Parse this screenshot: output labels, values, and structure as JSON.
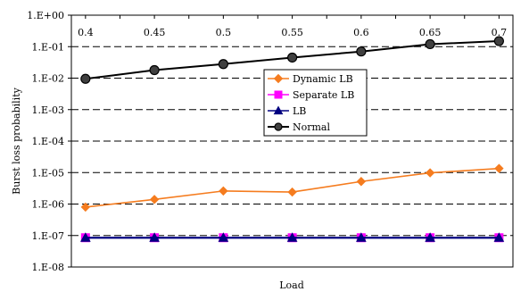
{
  "chart_data": {
    "type": "line",
    "title": "",
    "xlabel": "Load",
    "ylabel": "Burst loss probability",
    "x": [
      0.4,
      0.45,
      0.5,
      0.55,
      0.6,
      0.65,
      0.7
    ],
    "x_tick_labels": [
      "0.4",
      "0.45",
      "0.5",
      "0.55",
      "0.6",
      "0.65",
      "0.7"
    ],
    "y_scale": "log",
    "ylim": [
      1e-08,
      1
    ],
    "y_tick_labels": [
      "1.E+00",
      "1.E-01",
      "1.E-02",
      "1.E-03",
      "1.E-04",
      "1.E-05",
      "1.E-06",
      "1.E-07",
      "1.E-08"
    ],
    "y_tick_exponents": [
      0,
      -1,
      -2,
      -3,
      -4,
      -5,
      -6,
      -7,
      -8
    ],
    "grid": "horizontal-dashed",
    "legend_position": "center",
    "series": [
      {
        "name": "Dynamic LB",
        "color": "#f57c1f",
        "marker": "diamond",
        "values": [
          8e-07,
          1.4e-06,
          2.6e-06,
          2.4e-06,
          5.2e-06,
          9.8e-06,
          1.35e-05
        ]
      },
      {
        "name": "Separate LB",
        "color": "#ff00ff",
        "marker": "square",
        "values": [
          8.5e-08,
          8.5e-08,
          8.5e-08,
          8.5e-08,
          8.5e-08,
          8.5e-08,
          8.5e-08
        ]
      },
      {
        "name": "LB",
        "color": "#000080",
        "marker": "triangle",
        "values": [
          8.5e-08,
          8.5e-08,
          8.5e-08,
          8.5e-08,
          8.5e-08,
          8.5e-08,
          8.5e-08
        ]
      },
      {
        "name": "Normal",
        "color": "#000000",
        "marker": "circle",
        "fill": "#404040",
        "values": [
          0.0095,
          0.018,
          0.028,
          0.045,
          0.07,
          0.12,
          0.15
        ]
      }
    ]
  }
}
